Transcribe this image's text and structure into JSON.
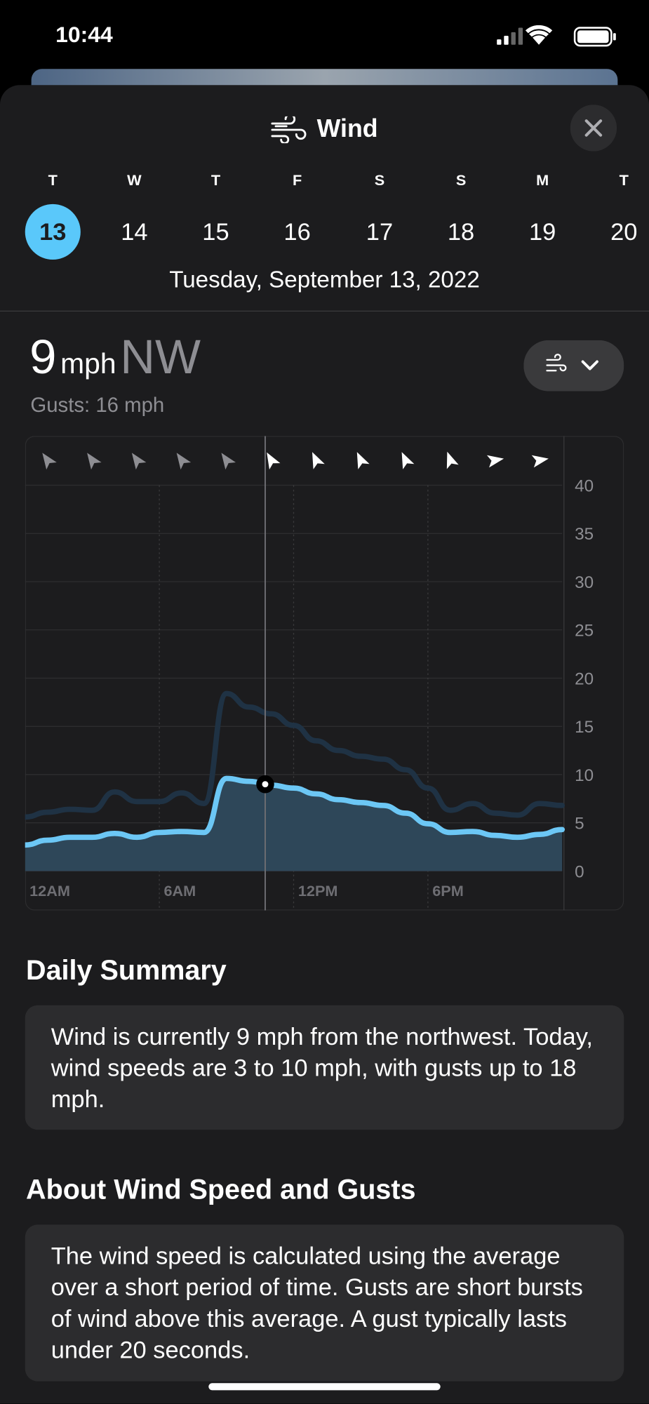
{
  "status_bar": {
    "time": "10:44"
  },
  "header": {
    "title": "Wind"
  },
  "days": [
    {
      "weekday": "T",
      "date": "13"
    },
    {
      "weekday": "W",
      "date": "14"
    },
    {
      "weekday": "T",
      "date": "15"
    },
    {
      "weekday": "F",
      "date": "16"
    },
    {
      "weekday": "S",
      "date": "17"
    },
    {
      "weekday": "S",
      "date": "18"
    },
    {
      "weekday": "M",
      "date": "19"
    },
    {
      "weekday": "T",
      "date": "20"
    }
  ],
  "selected_date": "Tuesday, September 13, 2022",
  "current": {
    "speed": 9,
    "unit": "mph",
    "direction": "NW",
    "gusts": "Gusts: 16 mph"
  },
  "chart_data": {
    "type": "line",
    "x": [
      0,
      1,
      2,
      3,
      4,
      5,
      6,
      7,
      8,
      9,
      10,
      11,
      12,
      13,
      14,
      15,
      16,
      17,
      18,
      19,
      20,
      21,
      22,
      23,
      24
    ],
    "series": [
      {
        "color": "#1f3244",
        "values": [
          5.6,
          6.1,
          6.4,
          6.3,
          8.2,
          7.2,
          7.2,
          8.1,
          7,
          18.4,
          17,
          16.3,
          15.1,
          13.5,
          12.5,
          11.9,
          11.6,
          10.5,
          8.6,
          6.3,
          7,
          6,
          5.8,
          7,
          6.8
        ]
      },
      {
        "color": "#6cc7f5",
        "values": [
          2.7,
          3.2,
          3.5,
          3.5,
          3.9,
          3.5,
          4,
          4.1,
          4,
          9.6,
          9.3,
          8.9,
          8.6,
          8,
          7.4,
          7.1,
          6.8,
          6,
          4.9,
          4,
          4.1,
          3.7,
          3.5,
          3.8,
          4.3
        ]
      }
    ],
    "xlim": [
      0,
      24
    ],
    "xticks": [
      {
        "value": 0,
        "label": "12AM"
      },
      {
        "value": 6,
        "label": "6AM"
      },
      {
        "value": 12,
        "label": "12PM"
      },
      {
        "value": 18,
        "label": "6PM"
      }
    ],
    "ylim": [
      0,
      40
    ],
    "yticks": [
      0,
      5,
      10,
      15,
      20,
      25,
      30,
      35,
      40
    ],
    "grid": true,
    "marker_x": 10.73
  },
  "summary": {
    "title": "Daily Summary",
    "text": "Wind is currently 9 mph from the northwest. Today, wind speeds are 3 to 10 mph, with gusts up to 18 mph."
  },
  "about": {
    "title": "About Wind Speed and Gusts",
    "text": "The wind speed is calculated using the average over a short period of time. Gusts are short bursts of wind above this average. A gust typically lasts under 20 seconds."
  }
}
